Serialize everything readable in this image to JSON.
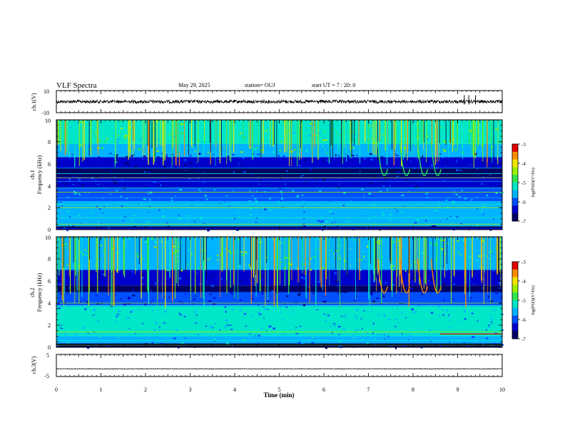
{
  "header": {
    "title": "VLF Spectra",
    "date": "May 29, 2025",
    "station": "station= OUJ",
    "start_ut": "start  UT  =   7 : 20: 0"
  },
  "colors": {
    "palette": [
      "#000066",
      "#0000cc",
      "#0050ff",
      "#00b4ff",
      "#00e6c8",
      "#2de650",
      "#9bf000",
      "#f0e600",
      "#ff8c00",
      "#e60000",
      "#ffffff"
    ],
    "waveform": "#000000",
    "background": "#ffffff"
  },
  "chart_data": [
    {
      "type": "line",
      "id": "wave1",
      "ylabel": "ch.1(V)",
      "ylim": [
        -10,
        10
      ],
      "yticks": [
        "10",
        "-10"
      ],
      "xlim": [
        0,
        10
      ],
      "baseline_v": 0,
      "spike_times_min": [
        9.15,
        9.25,
        9.4
      ]
    },
    {
      "type": "heatmap",
      "id": "spec1",
      "ylabel": "ch.1\nFrequency (kHz)",
      "ylim": [
        0,
        10
      ],
      "yticks": [
        "0",
        "2",
        "4",
        "6",
        "8",
        "10"
      ],
      "xlim": [
        0,
        10
      ],
      "colorbar": {
        "label": "log(PSD)(V²/Hz)",
        "range": [
          -7,
          -3
        ],
        "ticks": [
          "-3",
          "-4",
          "-5",
          "-6",
          "-7"
        ]
      },
      "noise_lines_khz": [
        0.5,
        1.1,
        1.5,
        2.0,
        2.3,
        2.9,
        3.4,
        3.8,
        4.4,
        4.7,
        5.1,
        5.6
      ],
      "dark_band_khz": [
        4.8,
        5.6
      ],
      "whistler_times_min": [
        7.3,
        7.8,
        8.2,
        8.5
      ]
    },
    {
      "type": "heatmap",
      "id": "spec2",
      "ylabel": "ch.2\nFrequency (kHz)",
      "ylim": [
        0,
        10
      ],
      "yticks": [
        "0",
        "2",
        "4",
        "6",
        "8",
        "10"
      ],
      "xlim": [
        0,
        10
      ],
      "colorbar": {
        "label": "log(PSD)(V²/Hz)",
        "range": [
          -7,
          -3
        ],
        "ticks": [
          "-3",
          "-4",
          "-5",
          "-6",
          "-7"
        ]
      },
      "noise_lines_khz": [
        0.2,
        0.6,
        1.2,
        1.4,
        2.3,
        3.7,
        4.0
      ],
      "dark_band_khz": [
        5.0,
        5.6
      ],
      "whistler_times_min": [
        7.3,
        7.8,
        8.2,
        8.5
      ]
    },
    {
      "type": "line",
      "id": "wave3",
      "ylabel": "ch.3(V)",
      "ylim": [
        -5,
        5
      ],
      "yticks": [
        "5",
        "-5"
      ],
      "xlim": [
        0,
        10
      ],
      "baseline_v": -1.5
    }
  ],
  "xaxis": {
    "label": "Time (min)",
    "ticks": [
      "0",
      "1",
      "2",
      "3",
      "4",
      "5",
      "6",
      "7",
      "8",
      "9",
      "10"
    ]
  }
}
